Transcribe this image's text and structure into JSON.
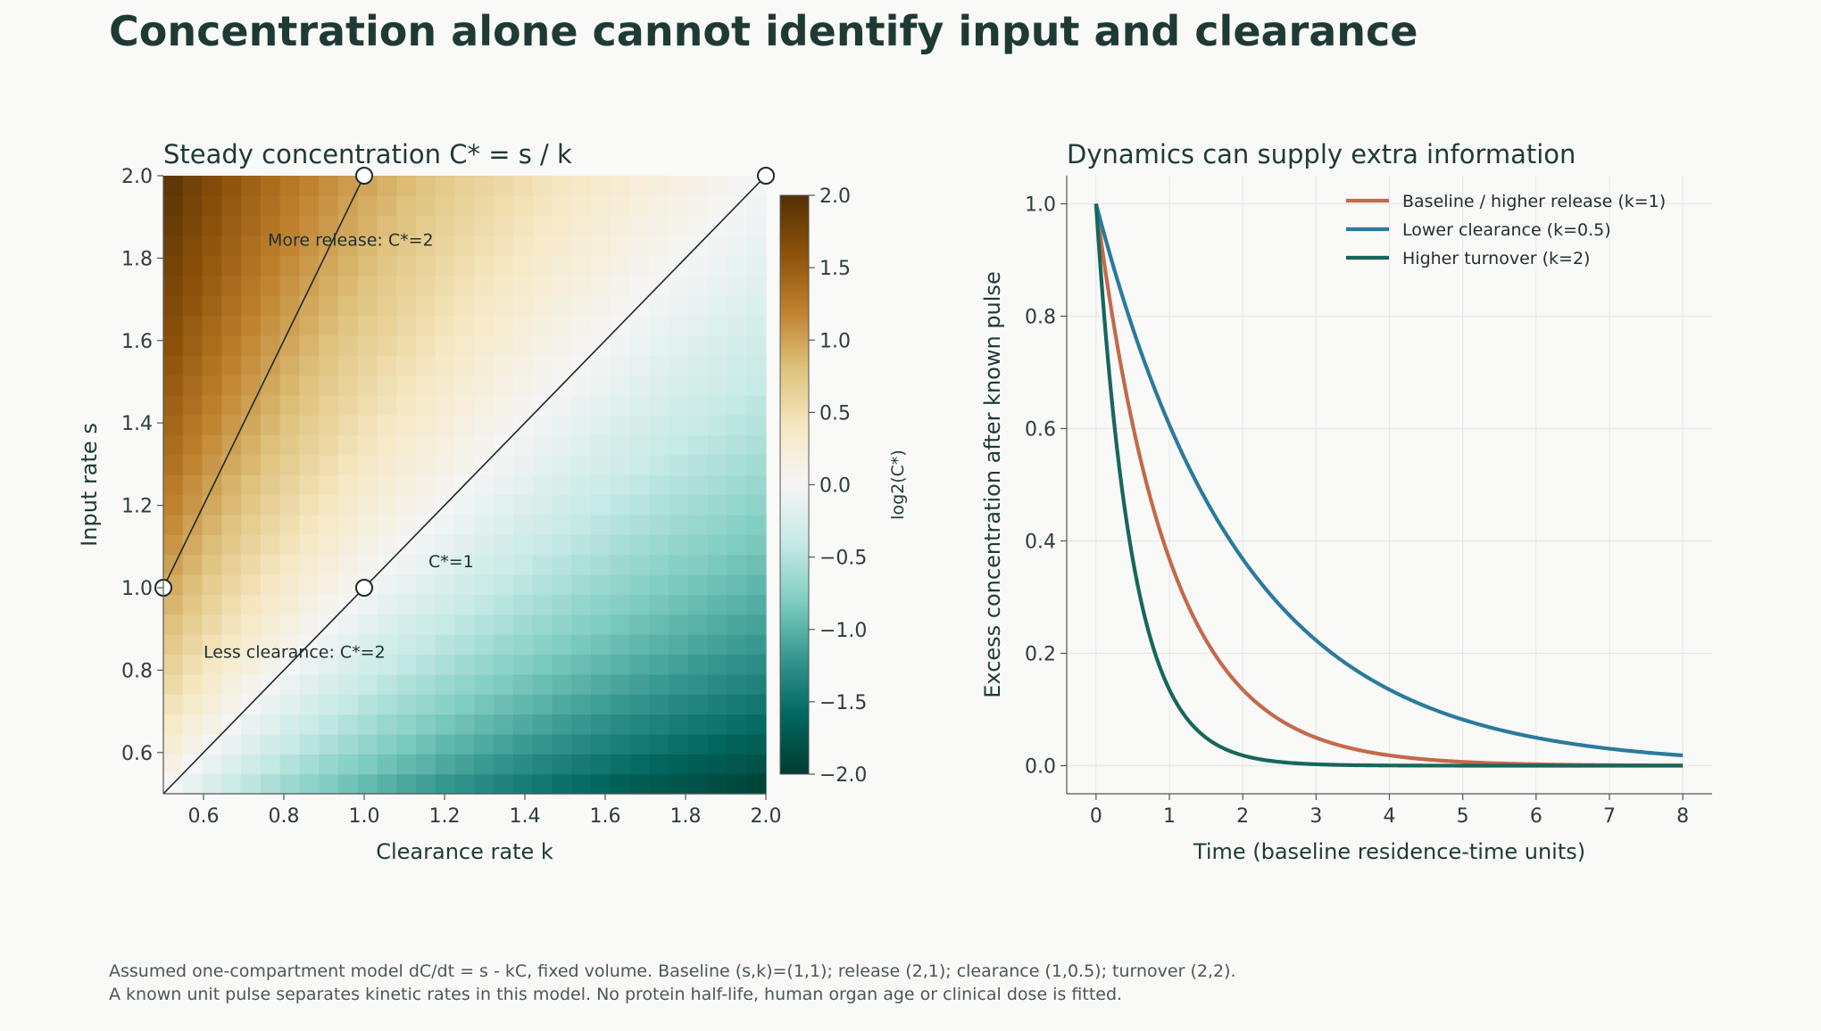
{
  "title": "Concentration alone cannot identify input and clearance",
  "footnote": {
    "line1": "Assumed one-compartment model dC/dt = s - kC, fixed volume. Baseline (s,k)=(1,1); release (2,1); clearance (1,0.5); turnover (2,2).",
    "line2": "A known unit pulse separates kinetic rates in this model. No protein half-life, human organ age or clinical dose is fitted."
  },
  "chart_data": [
    {
      "type": "heatmap",
      "title": "Steady concentration C* = s / k",
      "xlabel": "Clearance rate k",
      "ylabel": "Input rate s",
      "xlim": [
        0.5,
        2.0
      ],
      "ylim": [
        0.5,
        2.0
      ],
      "x_ticks": [
        "0.6",
        "0.8",
        "1.0",
        "1.2",
        "1.4",
        "1.6",
        "1.8",
        "2.0"
      ],
      "y_ticks": [
        "0.6",
        "0.8",
        "1.0",
        "1.2",
        "1.4",
        "1.6",
        "1.8",
        "2.0"
      ],
      "grid_size": 31,
      "value_function": "log2(s / k)",
      "colorbar": {
        "label": "log2(C*)",
        "range": [
          -2.0,
          2.0
        ],
        "ticks": [
          "2.0",
          "1.5",
          "1.0",
          "0.5",
          "0.0",
          "−0.5",
          "−1.0",
          "−1.5",
          "−2.0"
        ],
        "colors": [
          "#003c30",
          "#01665e",
          "#35978f",
          "#80cdc1",
          "#c7eae5",
          "#f5f5f5",
          "#f6e8c3",
          "#dfc27d",
          "#bf812d",
          "#8c510a",
          "#543005"
        ]
      },
      "lines": [
        {
          "name": "C*=1",
          "points": [
            [
              0.5,
              0.5
            ],
            [
              2.0,
              2.0
            ]
          ]
        },
        {
          "name": "C*=2",
          "points": [
            [
              0.5,
              1.0
            ],
            [
              1.0,
              2.0
            ]
          ]
        }
      ],
      "markers": [
        [
          1.0,
          1.0
        ],
        [
          2.0,
          2.0
        ],
        [
          1.0,
          2.0
        ],
        [
          0.5,
          1.0
        ]
      ],
      "annotations": [
        {
          "text": "More release: C*=2",
          "x": 0.76,
          "y": 1.83
        },
        {
          "text": "C*=1",
          "x": 1.16,
          "y": 1.05
        },
        {
          "text": "Less clearance: C*=2",
          "x": 0.6,
          "y": 0.83
        }
      ]
    },
    {
      "type": "line",
      "title": "Dynamics can supply extra information",
      "xlabel": "Time (baseline residence-time units)",
      "ylabel": "Excess concentration after known pulse",
      "xlim": [
        -0.4,
        8.4
      ],
      "ylim": [
        -0.05,
        1.05
      ],
      "x_ticks": [
        "0",
        "1",
        "2",
        "3",
        "4",
        "5",
        "6",
        "7",
        "8"
      ],
      "y_ticks": [
        "0.0",
        "0.2",
        "0.4",
        "0.6",
        "0.8",
        "1.0"
      ],
      "grid": true,
      "legend": "top-right",
      "series": [
        {
          "name": "Baseline / higher release (k=1)",
          "k": 1.0,
          "function": "exp(-k t)",
          "t_range": [
            0,
            8
          ],
          "color": "#c4694a"
        },
        {
          "name": "Lower clearance (k=0.5)",
          "k": 0.5,
          "function": "exp(-k t)",
          "t_range": [
            0,
            8
          ],
          "color": "#2b7a9e"
        },
        {
          "name": "Higher turnover (k=2)",
          "k": 2.0,
          "function": "exp(-k t)",
          "t_range": [
            0,
            8
          ],
          "color": "#17675a"
        }
      ]
    }
  ]
}
